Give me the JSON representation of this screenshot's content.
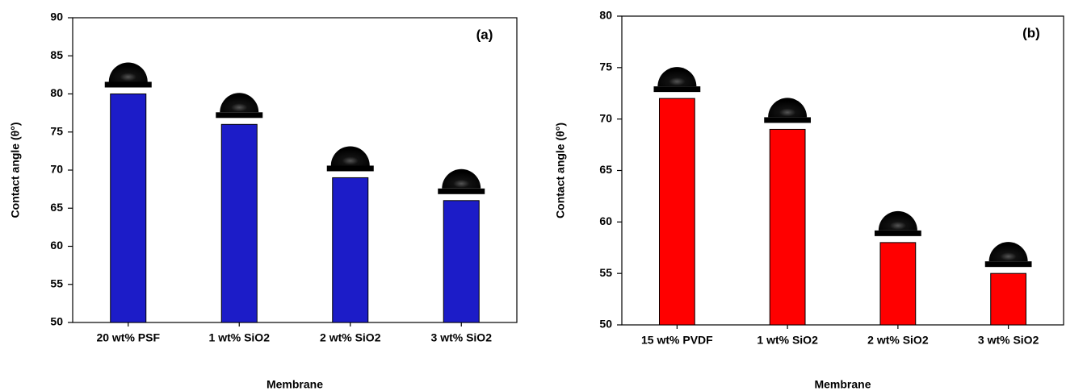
{
  "chart_data": [
    {
      "type": "bar",
      "panel_label": "(a)",
      "x_label": "Membrane",
      "y_label": "Contact angle (θ°)",
      "categories": [
        "20 wt% PSF",
        "1 wt% SiO2",
        "2 wt% SiO2",
        "3 wt% SiO2"
      ],
      "values": [
        80,
        76,
        69,
        66
      ],
      "color": "#1c1cc8",
      "ylim": [
        50,
        90
      ],
      "yticks": [
        50,
        55,
        60,
        65,
        70,
        75,
        80,
        85,
        90
      ]
    },
    {
      "type": "bar",
      "panel_label": "(b)",
      "x_label": "Membrane",
      "y_label": "Contact angle (θ°)",
      "categories": [
        "15 wt% PVDF",
        "1 wt% SiO2",
        "2 wt% SiO2",
        "3 wt% SiO2"
      ],
      "values": [
        72,
        69,
        58,
        55
      ],
      "color": "#ff0000",
      "ylim": [
        50,
        80
      ],
      "yticks": [
        50,
        55,
        60,
        65,
        70,
        75,
        80
      ]
    }
  ]
}
